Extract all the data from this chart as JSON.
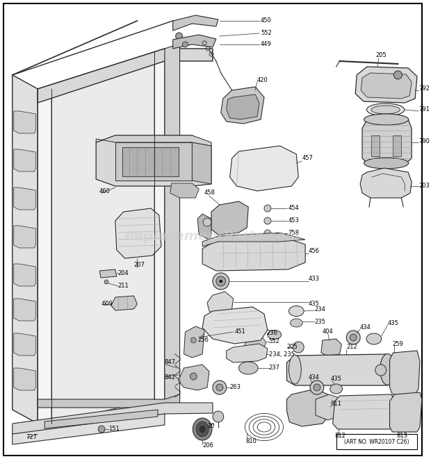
{
  "bg_color": "#ffffff",
  "line_color": "#2a2a2a",
  "fig_width": 6.2,
  "fig_height": 6.61,
  "dpi": 100,
  "watermark": "ReplacementParts.com",
  "art_no": "(ART NO. WR20107 C26)",
  "label_fontsize": 6.0,
  "lw_main": 1.0,
  "lw_part": 0.8,
  "lw_thin": 0.5,
  "gray_light": "#e8e8e8",
  "gray_med": "#c8c8c8",
  "gray_dark": "#a0a0a0",
  "gray_fill": "#d4d4d4"
}
